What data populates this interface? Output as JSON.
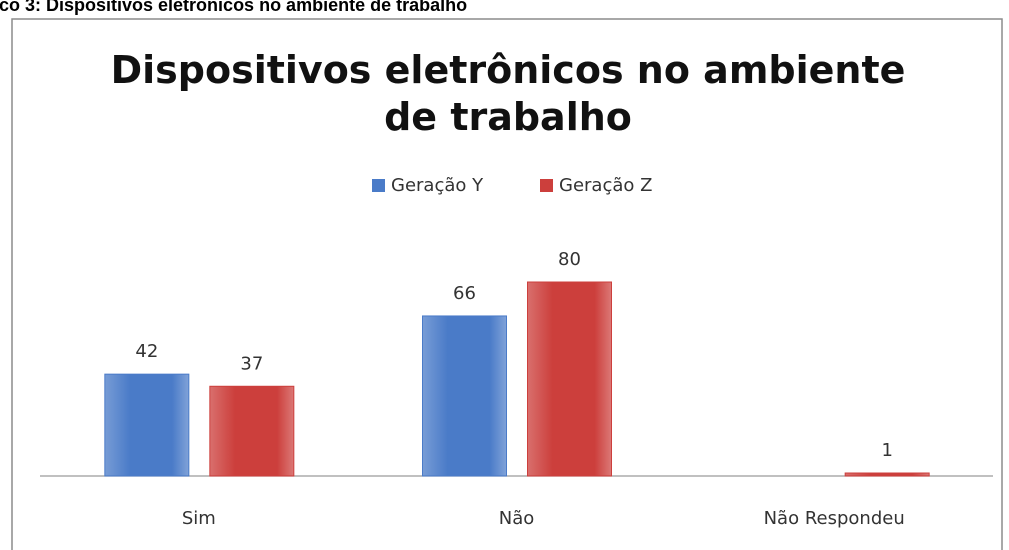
{
  "caption": "ico 3: Dispositivos eletrônicos no ambiente de trabalho",
  "chart_data": {
    "type": "bar",
    "title": "Dispositivos eletrônicos no ambiente de trabalho",
    "categories": [
      "Sim",
      "Não",
      "Não Respondeu"
    ],
    "series": [
      {
        "name": "Geração Y",
        "color": "#4a7bc8",
        "values": [
          42,
          66,
          null
        ]
      },
      {
        "name": "Geração Z",
        "color": "#cc3f3c",
        "values": [
          37,
          80,
          1
        ]
      }
    ],
    "legend": "top"
  }
}
